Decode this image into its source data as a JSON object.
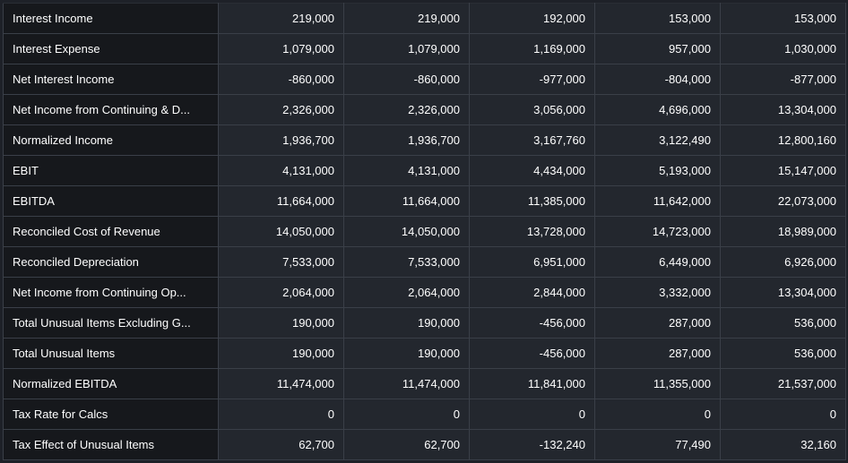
{
  "table": {
    "rows": [
      {
        "label": "Interest Income",
        "values": [
          "219,000",
          "219,000",
          "192,000",
          "153,000",
          "153,000"
        ]
      },
      {
        "label": "Interest Expense",
        "values": [
          "1,079,000",
          "1,079,000",
          "1,169,000",
          "957,000",
          "1,030,000"
        ]
      },
      {
        "label": "Net Interest Income",
        "values": [
          "-860,000",
          "-860,000",
          "-977,000",
          "-804,000",
          "-877,000"
        ]
      },
      {
        "label": "Net Income from Continuing & D...",
        "values": [
          "2,326,000",
          "2,326,000",
          "3,056,000",
          "4,696,000",
          "13,304,000"
        ]
      },
      {
        "label": "Normalized Income",
        "values": [
          "1,936,700",
          "1,936,700",
          "3,167,760",
          "3,122,490",
          "12,800,160"
        ]
      },
      {
        "label": "EBIT",
        "values": [
          "4,131,000",
          "4,131,000",
          "4,434,000",
          "5,193,000",
          "15,147,000"
        ]
      },
      {
        "label": "EBITDA",
        "values": [
          "11,664,000",
          "11,664,000",
          "11,385,000",
          "11,642,000",
          "22,073,000"
        ]
      },
      {
        "label": "Reconciled Cost of Revenue",
        "values": [
          "14,050,000",
          "14,050,000",
          "13,728,000",
          "14,723,000",
          "18,989,000"
        ]
      },
      {
        "label": "Reconciled Depreciation",
        "values": [
          "7,533,000",
          "7,533,000",
          "6,951,000",
          "6,449,000",
          "6,926,000"
        ]
      },
      {
        "label": "Net Income from Continuing Op...",
        "values": [
          "2,064,000",
          "2,064,000",
          "2,844,000",
          "3,332,000",
          "13,304,000"
        ]
      },
      {
        "label": "Total Unusual Items Excluding G...",
        "values": [
          "190,000",
          "190,000",
          "-456,000",
          "287,000",
          "536,000"
        ]
      },
      {
        "label": "Total Unusual Items",
        "values": [
          "190,000",
          "190,000",
          "-456,000",
          "287,000",
          "536,000"
        ]
      },
      {
        "label": "Normalized EBITDA",
        "values": [
          "11,474,000",
          "11,474,000",
          "11,841,000",
          "11,355,000",
          "21,537,000"
        ]
      },
      {
        "label": "Tax Rate for Calcs",
        "values": [
          "0",
          "0",
          "0",
          "0",
          "0"
        ]
      },
      {
        "label": "Tax Effect of Unusual Items",
        "values": [
          "62,700",
          "62,700",
          "-132,240",
          "77,490",
          "32,160"
        ]
      }
    ]
  }
}
